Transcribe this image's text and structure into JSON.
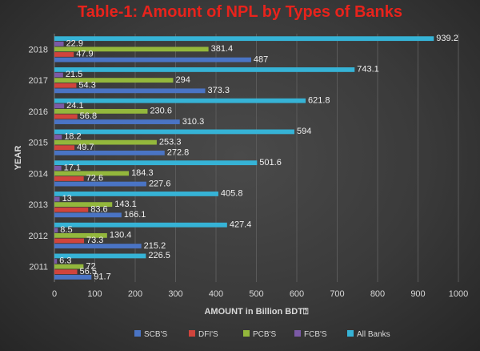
{
  "chart_data": {
    "type": "bar",
    "orientation": "horizontal",
    "title": "Table-1: Amount of NPL by Types of Banks",
    "xlabel": "AMOUNT in Billion BDT⍰",
    "ylabel": "YEAR",
    "xlim": [
      0,
      1000
    ],
    "xticks": [
      0,
      100,
      200,
      300,
      400,
      500,
      600,
      700,
      800,
      900,
      1000
    ],
    "grid": true,
    "legend_position": "bottom",
    "categories": [
      "2011",
      "2012",
      "2013",
      "2014",
      "2015",
      "2016",
      "2017",
      "2018"
    ],
    "series": [
      {
        "name": "SCB'S",
        "color": "#4a74c4",
        "values": [
          91.7,
          215.2,
          166.1,
          227.6,
          272.8,
          310.3,
          373.3,
          487
        ]
      },
      {
        "name": "DFI'S",
        "color": "#d0443c",
        "values": [
          56.5,
          73.3,
          83.6,
          72.6,
          49.7,
          56.8,
          54.3,
          47.9
        ]
      },
      {
        "name": "PCB'S",
        "color": "#93b73c",
        "values": [
          72,
          130.4,
          143.1,
          184.3,
          253.3,
          230.6,
          294,
          381.4
        ]
      },
      {
        "name": "FCB'S",
        "color": "#7b5aa6",
        "values": [
          6.3,
          8.5,
          13,
          17.1,
          18.2,
          24.1,
          21.5,
          22.9
        ]
      },
      {
        "name": "All Banks",
        "color": "#36b3d6",
        "values": [
          226.5,
          427.4,
          405.8,
          501.6,
          594,
          621.8,
          743.1,
          939.2
        ]
      }
    ],
    "labels": {
      "SCB'S": [
        "91.7",
        "215.2",
        "166.1",
        "227.6",
        "272.8",
        "310.3",
        "373.3",
        "487"
      ],
      "DFI'S": [
        "56.5",
        "73.3",
        "83.6",
        "72.6",
        "49.7",
        "56.8",
        "54.3",
        "47.9"
      ],
      "PCB'S": [
        "72",
        "130.4",
        "143.1",
        "184.3",
        "253.3",
        "230.6",
        "294",
        "381.4"
      ],
      "FCB'S": [
        "6.3",
        "8.5",
        "13",
        "17.1",
        "18.2",
        "24.1",
        "21.5",
        "22.9"
      ],
      "All Banks": [
        "226.5",
        "427.4",
        "405.8",
        "501.6",
        "594",
        "621.8",
        "743.1",
        "939.2"
      ]
    }
  }
}
